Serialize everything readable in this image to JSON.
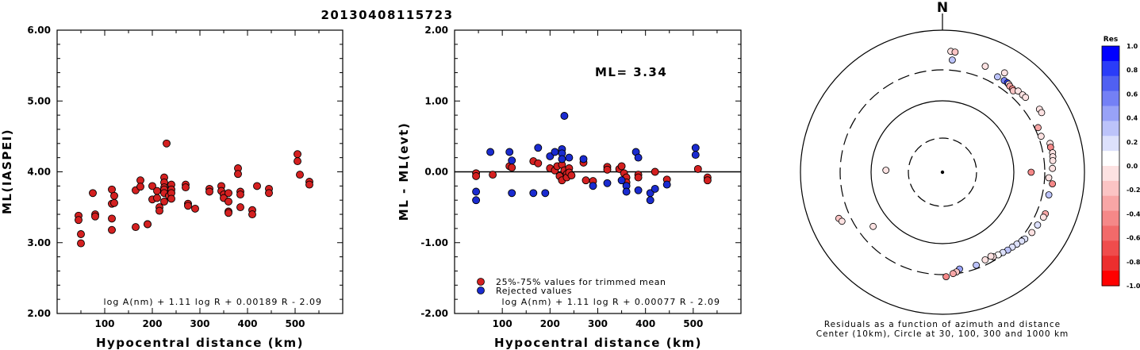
{
  "header": {
    "event_id": "20130408115723"
  },
  "chart_data": [
    {
      "type": "scatter",
      "xlabel": "Hypocentral distance (km)",
      "ylabel": "ML(IASPEI)",
      "xlim": [
        0,
        600
      ],
      "ylim": [
        2.0,
        6.0
      ],
      "xticks": [
        "100",
        "200",
        "300",
        "400",
        "500"
      ],
      "yticks": [
        "2.00",
        "3.00",
        "4.00",
        "5.00",
        "6.00"
      ],
      "formula": "log A(nm) + 1.11 log R + 0.00189 R - 2.09",
      "grid": false,
      "series": [
        {
          "color": "#d42020",
          "points": [
            [
              45,
              3.38
            ],
            [
              45,
              3.32
            ],
            [
              50,
              3.12
            ],
            [
              50,
              2.99
            ],
            [
              75,
              3.7
            ],
            [
              80,
              3.4
            ],
            [
              80,
              3.37
            ],
            [
              115,
              3.75
            ],
            [
              115,
              3.55
            ],
            [
              115,
              3.34
            ],
            [
              115,
              3.18
            ],
            [
              120,
              3.66
            ],
            [
              120,
              3.56
            ],
            [
              165,
              3.74
            ],
            [
              165,
              3.22
            ],
            [
              175,
              3.88
            ],
            [
              175,
              3.79
            ],
            [
              190,
              3.26
            ],
            [
              190,
              3.26
            ],
            [
              200,
              3.8
            ],
            [
              200,
              3.61
            ],
            [
              210,
              3.73
            ],
            [
              210,
              3.63
            ],
            [
              215,
              3.5
            ],
            [
              215,
              3.45
            ],
            [
              225,
              3.92
            ],
            [
              225,
              3.85
            ],
            [
              225,
              3.78
            ],
            [
              225,
              3.75
            ],
            [
              225,
              3.7
            ],
            [
              225,
              3.58
            ],
            [
              230,
              4.4
            ],
            [
              235,
              3.66
            ],
            [
              240,
              3.82
            ],
            [
              240,
              3.75
            ],
            [
              240,
              3.7
            ],
            [
              240,
              3.62
            ],
            [
              270,
              3.82
            ],
            [
              270,
              3.78
            ],
            [
              275,
              3.55
            ],
            [
              275,
              3.52
            ],
            [
              290,
              3.48
            ],
            [
              320,
              3.76
            ],
            [
              320,
              3.72
            ],
            [
              345,
              3.8
            ],
            [
              345,
              3.73
            ],
            [
              350,
              3.68
            ],
            [
              350,
              3.63
            ],
            [
              360,
              3.7
            ],
            [
              360,
              3.58
            ],
            [
              360,
              3.44
            ],
            [
              360,
              3.42
            ],
            [
              380,
              4.05
            ],
            [
              380,
              3.97
            ],
            [
              385,
              3.72
            ],
            [
              385,
              3.68
            ],
            [
              385,
              3.5
            ],
            [
              410,
              3.46
            ],
            [
              410,
              3.4
            ],
            [
              420,
              3.8
            ],
            [
              445,
              3.76
            ],
            [
              445,
              3.7
            ],
            [
              505,
              4.25
            ],
            [
              505,
              4.15
            ],
            [
              510,
              3.96
            ],
            [
              530,
              3.86
            ],
            [
              530,
              3.82
            ]
          ]
        }
      ]
    },
    {
      "type": "scatter",
      "xlabel": "Hypocentral distance (km)",
      "ylabel": "ML - ML(evt)",
      "xlim": [
        0,
        600
      ],
      "ylim": [
        -2.0,
        2.0
      ],
      "xticks": [
        "100",
        "200",
        "300",
        "400",
        "500"
      ],
      "yticks": [
        "-2.00",
        "-1.00",
        "0.00",
        "1.00",
        "2.00"
      ],
      "annotation": "ML= 3.34",
      "formula": "log A(nm) + 1.11 log R + 0.00077 R - 2.09",
      "reference_line": 0.0,
      "legend_position": "bottom-left",
      "grid": false,
      "series": [
        {
          "name": "25%-75% values for trimmed mean",
          "color": "#d42020",
          "points": [
            [
              45,
              -0.02
            ],
            [
              45,
              -0.06
            ],
            [
              80,
              -0.04
            ],
            [
              115,
              0.08
            ],
            [
              120,
              0.06
            ],
            [
              165,
              0.15
            ],
            [
              175,
              0.12
            ],
            [
              200,
              0.05
            ],
            [
              210,
              0.02
            ],
            [
              215,
              0.08
            ],
            [
              220,
              -0.06
            ],
            [
              225,
              -0.12
            ],
            [
              225,
              0.1
            ],
            [
              230,
              0.02
            ],
            [
              235,
              -0.03
            ],
            [
              235,
              -0.08
            ],
            [
              240,
              0.05
            ],
            [
              240,
              -0.01
            ],
            [
              245,
              -0.05
            ],
            [
              270,
              0.13
            ],
            [
              275,
              -0.12
            ],
            [
              290,
              -0.13
            ],
            [
              320,
              0.07
            ],
            [
              320,
              0.03
            ],
            [
              345,
              0.04
            ],
            [
              350,
              0.08
            ],
            [
              355,
              -0.02
            ],
            [
              360,
              -0.08
            ],
            [
              360,
              -0.15
            ],
            [
              385,
              -0.04
            ],
            [
              385,
              -0.08
            ],
            [
              420,
              0.0
            ],
            [
              445,
              -0.11
            ],
            [
              510,
              0.04
            ],
            [
              530,
              -0.08
            ],
            [
              530,
              -0.12
            ]
          ]
        },
        {
          "name": "Rejected values",
          "color": "#1a2bd0",
          "points": [
            [
              45,
              -0.28
            ],
            [
              45,
              -0.4
            ],
            [
              75,
              0.28
            ],
            [
              115,
              0.28
            ],
            [
              120,
              0.16
            ],
            [
              120,
              -0.3
            ],
            [
              165,
              -0.3
            ],
            [
              175,
              0.34
            ],
            [
              190,
              -0.3
            ],
            [
              200,
              0.22
            ],
            [
              210,
              0.28
            ],
            [
              225,
              0.32
            ],
            [
              225,
              0.26
            ],
            [
              225,
              0.18
            ],
            [
              230,
              0.79
            ],
            [
              240,
              0.2
            ],
            [
              270,
              0.18
            ],
            [
              290,
              -0.2
            ],
            [
              320,
              -0.16
            ],
            [
              350,
              -0.12
            ],
            [
              360,
              -0.2
            ],
            [
              360,
              -0.28
            ],
            [
              380,
              0.28
            ],
            [
              385,
              0.2
            ],
            [
              385,
              -0.26
            ],
            [
              410,
              -0.3
            ],
            [
              410,
              -0.4
            ],
            [
              420,
              -0.24
            ],
            [
              445,
              -0.18
            ],
            [
              505,
              0.34
            ],
            [
              505,
              0.24
            ]
          ]
        }
      ]
    },
    {
      "type": "scatter",
      "subtype": "polar",
      "north_label": "N",
      "caption_line1": "Residuals as a function of azimuth and distance",
      "caption_line2": "Center (10km), Circle at 30, 100, 300 and 1000 km",
      "rings_km": [
        30,
        100,
        300,
        1000
      ],
      "colorbar": {
        "title": "Res",
        "min": -1.0,
        "max": 1.0,
        "ticks": [
          "1.0",
          "0.8",
          "0.6",
          "0.4",
          "0.2",
          "0.0",
          "-0.2",
          "-0.4",
          "-0.6",
          "-0.8",
          "-1.0"
        ],
        "colors": [
          "#0000ff",
          "#2a3cf8",
          "#5060f2",
          "#7480f5",
          "#98a2f7",
          "#bcc3fa",
          "#dde1fc",
          "#ffffff",
          "#fde2e2",
          "#fbc4c4",
          "#f8a6a6",
          "#f58888",
          "#f26a6a",
          "#ef4c4c",
          "#ec2e2e",
          "#ff0000"
        ]
      },
      "points": [
        {
          "az": 4,
          "dist": 530,
          "res": 0.0
        },
        {
          "az": 6,
          "dist": 525,
          "res": -0.2
        },
        {
          "az": 5,
          "dist": 410,
          "res": 0.4
        },
        {
          "az": 22,
          "dist": 430,
          "res": 0.0
        },
        {
          "az": 32,
          "dist": 470,
          "res": 0.0
        },
        {
          "az": 30,
          "dist": 380,
          "res": 0.3
        },
        {
          "az": 34,
          "dist": 385,
          "res": 0.6
        },
        {
          "az": 36,
          "dist": 385,
          "res": 0.8
        },
        {
          "az": 37,
          "dist": 380,
          "res": 0.0
        },
        {
          "az": 38,
          "dist": 370,
          "res": -0.3
        },
        {
          "az": 40,
          "dist": 365,
          "res": -0.5
        },
        {
          "az": 41,
          "dist": 355,
          "res": -0.2
        },
        {
          "az": 43,
          "dist": 390,
          "res": 0.0
        },
        {
          "az": 46,
          "dist": 395,
          "res": 0.0
        },
        {
          "az": 48,
          "dist": 400,
          "res": 0.0
        },
        {
          "az": 57,
          "dist": 450,
          "res": 0.0
        },
        {
          "az": 59,
          "dist": 450,
          "res": 0.0
        },
        {
          "az": 65,
          "dist": 330,
          "res": -0.3
        },
        {
          "az": 70,
          "dist": 325,
          "res": 0.0
        },
        {
          "az": 75,
          "dist": 395,
          "res": 0.0
        },
        {
          "az": 77,
          "dist": 390,
          "res": -0.4
        },
        {
          "az": 80,
          "dist": 400,
          "res": 0.0
        },
        {
          "az": 82,
          "dist": 395,
          "res": 0.0
        },
        {
          "az": 84,
          "dist": 390,
          "res": 0.0
        },
        {
          "az": 88,
          "dist": 380,
          "res": 0.0
        },
        {
          "az": 93,
          "dist": 340,
          "res": -0.1
        },
        {
          "az": 96,
          "dist": 385,
          "res": -0.4
        },
        {
          "az": 102,
          "dist": 365,
          "res": 0.3
        },
        {
          "az": 90,
          "dist": 185,
          "res": -0.5
        },
        {
          "az": 112,
          "dist": 390,
          "res": -0.3
        },
        {
          "az": 114,
          "dist": 385,
          "res": 0.0
        },
        {
          "az": 119,
          "dist": 365,
          "res": 0.2
        },
        {
          "az": 124,
          "dist": 355,
          "res": 0.0
        },
        {
          "az": 129,
          "dist": 335,
          "res": 0.2
        },
        {
          "az": 131,
          "dist": 325,
          "res": 0.2
        },
        {
          "az": 134,
          "dist": 310,
          "res": 0.2
        },
        {
          "az": 137,
          "dist": 300,
          "res": 0.2
        },
        {
          "az": 140,
          "dist": 292,
          "res": 0.3
        },
        {
          "az": 143,
          "dist": 280,
          "res": 0.2
        },
        {
          "az": 146,
          "dist": 272,
          "res": 0.1
        },
        {
          "az": 149,
          "dist": 262,
          "res": 0.0
        },
        {
          "az": 150,
          "dist": 248,
          "res": 0.0
        },
        {
          "az": 154,
          "dist": 252,
          "res": 0.0
        },
        {
          "az": 160,
          "dist": 265,
          "res": 0.4
        },
        {
          "az": 170,
          "dist": 260,
          "res": 0.5
        },
        {
          "az": 172,
          "dist": 282,
          "res": -0.2
        },
        {
          "az": 174,
          "dist": 295,
          "res": -0.3
        },
        {
          "az": 178,
          "dist": 320,
          "res": -0.5
        },
        {
          "az": 232,
          "dist": 180,
          "res": 0.0
        },
        {
          "az": 246,
          "dist": 420,
          "res": -0.2
        },
        {
          "az": 244,
          "dist": 400,
          "res": 0.0
        },
        {
          "az": 272,
          "dist": 62,
          "res": 0.0
        }
      ]
    }
  ]
}
